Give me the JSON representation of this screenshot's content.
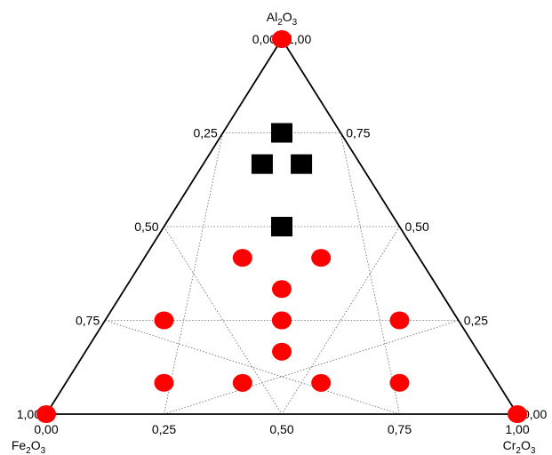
{
  "chart_data": {
    "type": "scatter",
    "subtype": "ternary",
    "vertices": {
      "top": {
        "parts": [
          "Al",
          "2",
          "O",
          "3"
        ]
      },
      "left": {
        "parts": [
          "Fe",
          "2",
          "O",
          "3"
        ]
      },
      "right": {
        "parts": [
          "Cr",
          "2",
          "O",
          "3"
        ]
      }
    },
    "grid_fractions": [
      0.25,
      0.5,
      0.75
    ],
    "tick_labels": {
      "left_edge": [
        "0,00",
        "0,25",
        "0,50",
        "0,75",
        "1,00"
      ],
      "right_edge": [
        "1,00",
        "0,75",
        "0,50",
        "0,25",
        "0,00"
      ],
      "bottom_edge": [
        "0,00",
        "0,25",
        "0,50",
        "0,75",
        "1,00"
      ]
    },
    "colors": {
      "circle": "#ff0000",
      "square": "#000000",
      "grid": "#666666",
      "frame": "#000000"
    },
    "series": [
      {
        "marker": "circle",
        "points": [
          {
            "Al2O3": 1.0,
            "Fe2O3": 0.0,
            "Cr2O3": 0.0
          },
          {
            "Al2O3": 0.0,
            "Fe2O3": 1.0,
            "Cr2O3": 0.0
          },
          {
            "Al2O3": 0.0,
            "Fe2O3": 0.0,
            "Cr2O3": 1.0
          },
          {
            "Al2O3": 0.4167,
            "Fe2O3": 0.375,
            "Cr2O3": 0.2083
          },
          {
            "Al2O3": 0.4167,
            "Fe2O3": 0.2083,
            "Cr2O3": 0.375
          },
          {
            "Al2O3": 0.3333,
            "Fe2O3": 0.3333,
            "Cr2O3": 0.3333
          },
          {
            "Al2O3": 0.25,
            "Fe2O3": 0.625,
            "Cr2O3": 0.125
          },
          {
            "Al2O3": 0.25,
            "Fe2O3": 0.375,
            "Cr2O3": 0.375
          },
          {
            "Al2O3": 0.25,
            "Fe2O3": 0.125,
            "Cr2O3": 0.625
          },
          {
            "Al2O3": 0.25,
            "Fe2O3": 0.375,
            "Cr2O3": 0.375
          },
          {
            "Al2O3": 0.1667,
            "Fe2O3": 0.4167,
            "Cr2O3": 0.4167
          },
          {
            "Al2O3": 0.0833,
            "Fe2O3": 0.7083,
            "Cr2O3": 0.2083
          },
          {
            "Al2O3": 0.0833,
            "Fe2O3": 0.5417,
            "Cr2O3": 0.375
          },
          {
            "Al2O3": 0.0833,
            "Fe2O3": 0.375,
            "Cr2O3": 0.5417
          },
          {
            "Al2O3": 0.0833,
            "Fe2O3": 0.2083,
            "Cr2O3": 0.7083
          }
        ]
      },
      {
        "marker": "square",
        "points": [
          {
            "Al2O3": 0.75,
            "Fe2O3": 0.125,
            "Cr2O3": 0.125
          },
          {
            "Al2O3": 0.6667,
            "Fe2O3": 0.2083,
            "Cr2O3": 0.125
          },
          {
            "Al2O3": 0.6667,
            "Fe2O3": 0.125,
            "Cr2O3": 0.2083
          },
          {
            "Al2O3": 0.5,
            "Fe2O3": 0.25,
            "Cr2O3": 0.25
          }
        ]
      }
    ]
  }
}
